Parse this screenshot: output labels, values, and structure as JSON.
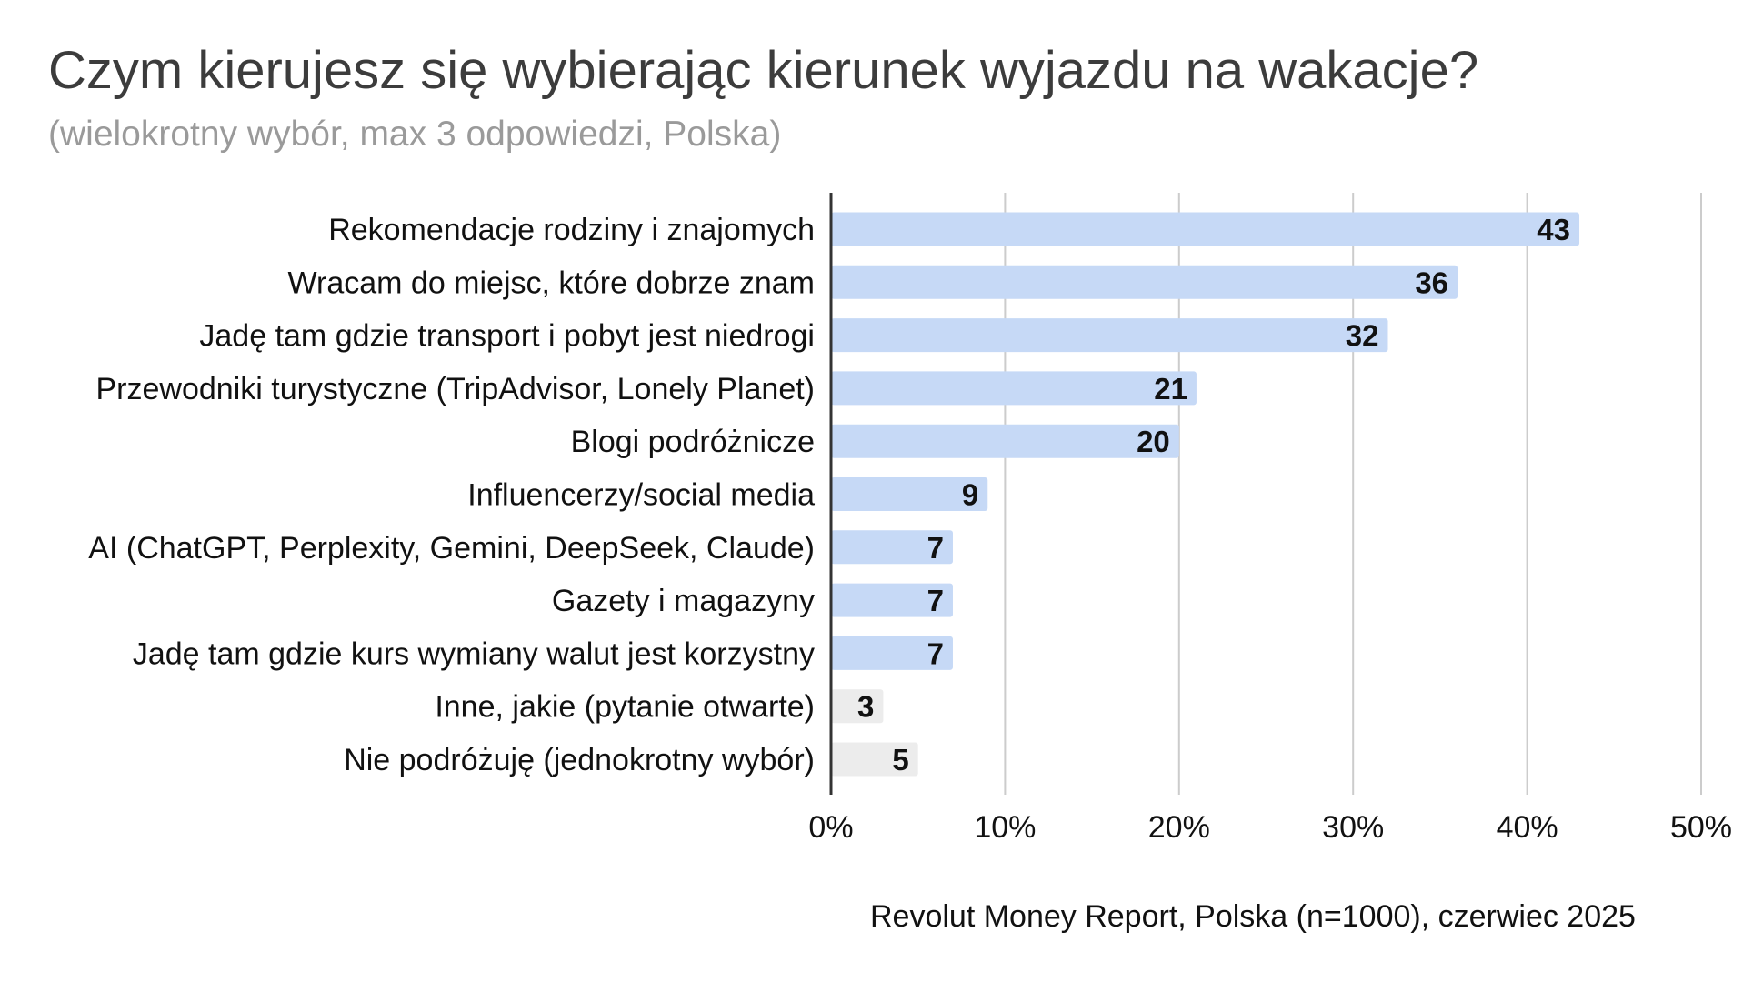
{
  "colors": {
    "bar": "#c6d9f6",
    "bar_other": "#ececec",
    "grid": "#cccccc",
    "axis": "#333333"
  },
  "chart_data": {
    "type": "bar",
    "orientation": "horizontal",
    "title": "Czym kierujesz się wybierając kierunek wyjazdu na wakacje?",
    "subtitle": "(wielokrotny wybór, max 3 odpowiedzi, Polska)",
    "source": "Revolut Money Report, Polska (n=1000), czerwiec 2025",
    "xlim": [
      0,
      50
    ],
    "ticks": [
      {
        "value": 0,
        "label": "0%"
      },
      {
        "value": 10,
        "label": "10%"
      },
      {
        "value": 20,
        "label": "20%"
      },
      {
        "value": 30,
        "label": "30%"
      },
      {
        "value": 40,
        "label": "40%"
      },
      {
        "value": 50,
        "label": "50%"
      }
    ],
    "grid": true,
    "categories": [
      "Rekomendacje rodziny i znajomych",
      "Wracam do miejsc, które dobrze znam",
      "Jadę tam gdzie transport i pobyt jest niedrogi",
      "Przewodniki turystyczne (TripAdvisor, Lonely Planet)",
      "Blogi podróżnicze",
      "Influencerzy/social media",
      "AI (ChatGPT, Perplexity, Gemini, DeepSeek, Claude)",
      "Gazety i magazyny",
      "Jadę tam gdzie kurs wymiany walut jest korzystny",
      "Inne, jakie (pytanie otwarte)",
      "Nie podróżuję (jednokrotny wybór)"
    ],
    "values": [
      43,
      36,
      32,
      21,
      20,
      9,
      7,
      7,
      7,
      3,
      5
    ],
    "value_labels": [
      "43",
      "36",
      "32",
      "21",
      "20",
      "9",
      "7",
      "7",
      "7",
      "3",
      "5"
    ],
    "bar_groups": [
      "main",
      "main",
      "main",
      "main",
      "main",
      "main",
      "main",
      "main",
      "main",
      "other",
      "other"
    ]
  }
}
